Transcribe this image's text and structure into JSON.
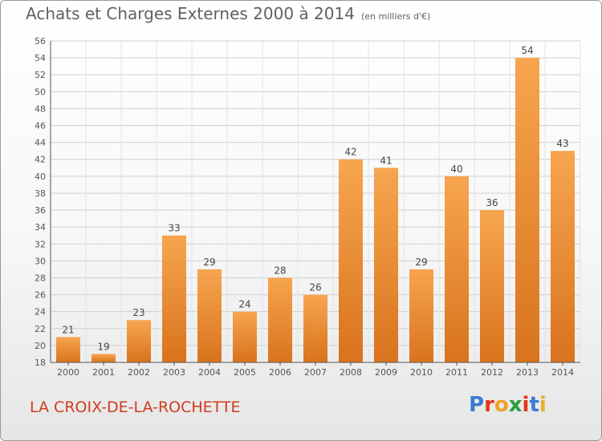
{
  "header": {
    "title": "Achats et Charges Externes 2000 à 2014",
    "subtitle": "(en milliers d'€)"
  },
  "footer": {
    "commune": "LA CROIX-DE-LA-ROCHETTE",
    "brand": "Proxiti",
    "brand_colors": [
      "#3a7bd5",
      "#e8341c",
      "#f0a02a",
      "#2a9d3a",
      "#e8341c",
      "#3a7bd5",
      "#e8b02a"
    ]
  },
  "colors": {
    "bar_light": "#f7a54f",
    "bar_dark": "#d9731d",
    "grid": "#d0d0d0"
  },
  "chart_data": {
    "type": "bar",
    "title": "Achats et Charges Externes 2000 à 2014",
    "subtitle": "(en milliers d'€)",
    "categories": [
      "2000",
      "2001",
      "2002",
      "2003",
      "2004",
      "2005",
      "2006",
      "2007",
      "2008",
      "2009",
      "2010",
      "2011",
      "2012",
      "2013",
      "2014"
    ],
    "values": [
      21,
      19,
      23,
      33,
      29,
      24,
      28,
      26,
      42,
      41,
      29,
      40,
      36,
      54,
      43
    ],
    "ylim": [
      18,
      56
    ],
    "yticks": [
      18,
      20,
      22,
      24,
      26,
      28,
      30,
      32,
      34,
      36,
      38,
      40,
      42,
      44,
      46,
      48,
      50,
      52,
      54,
      56
    ],
    "grid": true,
    "xlabel": "",
    "ylabel": ""
  }
}
